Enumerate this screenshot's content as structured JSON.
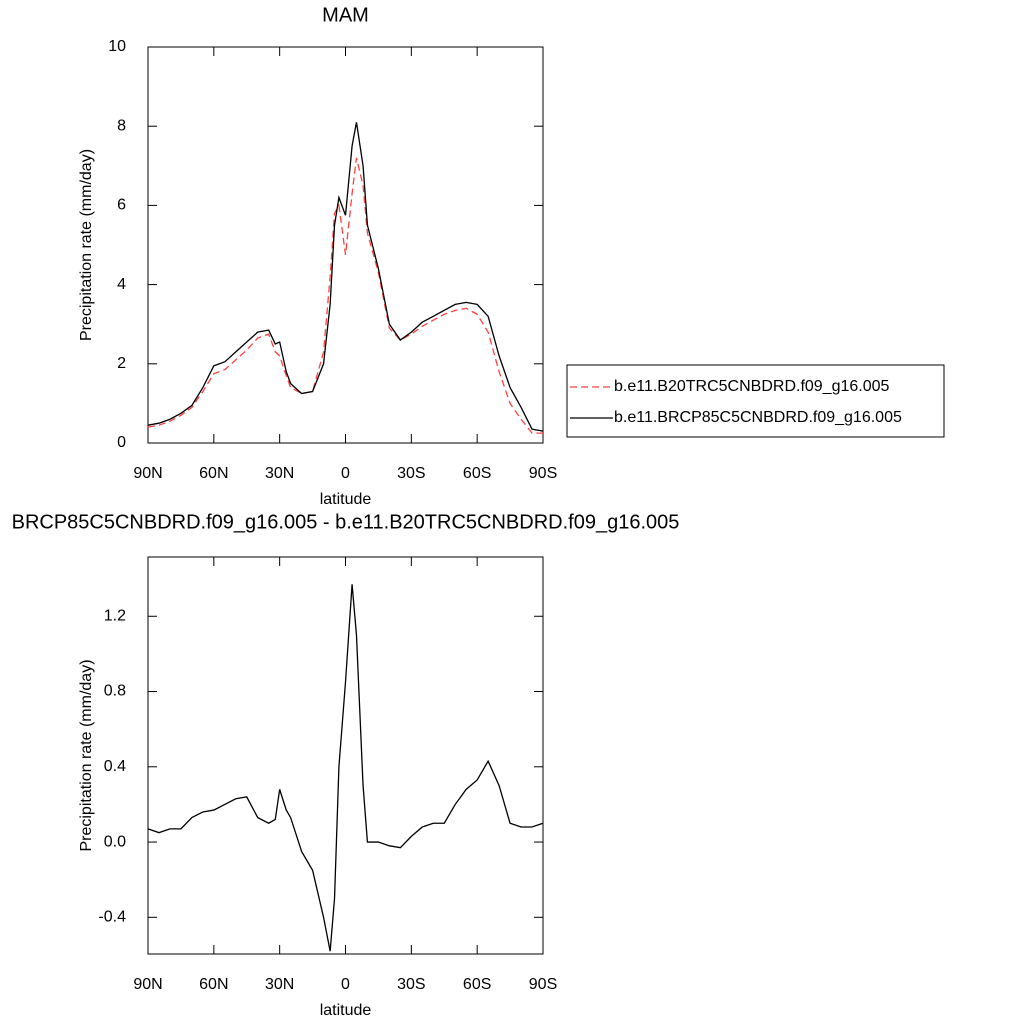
{
  "chart_data": [
    {
      "type": "line",
      "title": "MAM",
      "x_label": "latitude",
      "y_label": "Precipitation rate (mm/day)",
      "x": [
        90,
        85,
        80,
        75,
        70,
        65,
        60,
        55,
        50,
        45,
        40,
        35,
        32,
        30,
        27,
        25,
        20,
        15,
        10,
        7,
        5,
        3,
        0,
        -3,
        -5,
        -8,
        -10,
        -15,
        -20,
        -25,
        -30,
        -35,
        -40,
        -45,
        -50,
        -55,
        -60,
        -65,
        -70,
        -75,
        -80,
        -85,
        -90
      ],
      "series": [
        {
          "name": "b.e11.B20TRC5CNBDRD.f09_g16.005",
          "color": "#ff4040",
          "linestyle": "dashed",
          "values": [
            0.4,
            0.45,
            0.55,
            0.7,
            0.9,
            1.3,
            1.75,
            1.85,
            2.1,
            2.35,
            2.65,
            2.75,
            2.3,
            2.2,
            1.7,
            1.4,
            1.25,
            1.3,
            2.3,
            4.2,
            5.8,
            6.0,
            4.75,
            6.3,
            7.2,
            6.5,
            5.3,
            4.3,
            2.9,
            2.6,
            2.75,
            2.95,
            3.1,
            3.25,
            3.35,
            3.4,
            3.25,
            2.8,
            1.8,
            1.0,
            0.6,
            0.25,
            0.25
          ]
        },
        {
          "name": "b.e11.BRCP85C5CNBDRD.f09_g16.005",
          "color": "#000000",
          "linestyle": "solid",
          "values": [
            0.45,
            0.5,
            0.6,
            0.75,
            0.95,
            1.4,
            1.95,
            2.05,
            2.3,
            2.55,
            2.8,
            2.85,
            2.5,
            2.55,
            1.8,
            1.5,
            1.25,
            1.3,
            2.0,
            3.5,
            5.5,
            6.2,
            5.75,
            7.5,
            8.1,
            7.0,
            5.5,
            4.4,
            3.0,
            2.6,
            2.8,
            3.05,
            3.2,
            3.35,
            3.5,
            3.55,
            3.5,
            3.2,
            2.2,
            1.4,
            0.9,
            0.35,
            0.3
          ]
        }
      ],
      "xlim": [
        90,
        -90
      ],
      "xticks": [
        {
          "value": 90,
          "label": "90N"
        },
        {
          "value": 60,
          "label": "60N"
        },
        {
          "value": 30,
          "label": "30N"
        },
        0,
        {
          "value": -30,
          "label": "30S"
        },
        {
          "value": -60,
          "label": "60S"
        },
        {
          "value": -90,
          "label": "90S"
        }
      ],
      "ylim": [
        0,
        10
      ],
      "yticks": [
        0,
        2,
        4,
        6,
        8,
        10
      ],
      "legend": "right"
    },
    {
      "type": "line",
      "title": "BRCP85C5CNBDRD.f09_g16.005 - b.e11.B20TRC5CNBDRD.f09_g16.005",
      "x_label": "latitude",
      "y_label": "Precipitation rate (mm/day)",
      "x": [
        90,
        85,
        80,
        75,
        70,
        65,
        60,
        55,
        50,
        45,
        40,
        35,
        32,
        30,
        27,
        25,
        20,
        15,
        10,
        7,
        5,
        3,
        0,
        -3,
        -5,
        -8,
        -10,
        -15,
        -20,
        -25,
        -30,
        -35,
        -40,
        -45,
        -50,
        -55,
        -60,
        -65,
        -70,
        -75,
        -80,
        -85,
        -90
      ],
      "series": [
        {
          "color": "#000000",
          "linestyle": "solid",
          "values": [
            0.07,
            0.05,
            0.07,
            0.07,
            0.13,
            0.16,
            0.17,
            0.2,
            0.23,
            0.24,
            0.13,
            0.1,
            0.12,
            0.28,
            0.17,
            0.13,
            -0.05,
            -0.15,
            -0.4,
            -0.58,
            -0.3,
            0.4,
            0.85,
            1.37,
            1.1,
            0.3,
            0.0,
            0.0,
            -0.02,
            -0.03,
            0.03,
            0.08,
            0.1,
            0.1,
            0.2,
            0.28,
            0.33,
            0.43,
            0.3,
            0.1,
            0.08,
            0.08,
            0.1
          ]
        }
      ],
      "xlim": [
        90,
        -90
      ],
      "xticks": [
        {
          "value": 90,
          "label": "90N"
        },
        {
          "value": 60,
          "label": "60N"
        },
        {
          "value": 30,
          "label": "30N"
        },
        0,
        {
          "value": -30,
          "label": "30S"
        },
        {
          "value": -60,
          "label": "60S"
        },
        {
          "value": -90,
          "label": "90S"
        }
      ],
      "ylim": [
        -0.595,
        1.515
      ],
      "yticks": [
        -0.4,
        {
          "value": 0,
          "label": "0.0"
        },
        0.4,
        0.8,
        1.2
      ]
    }
  ]
}
